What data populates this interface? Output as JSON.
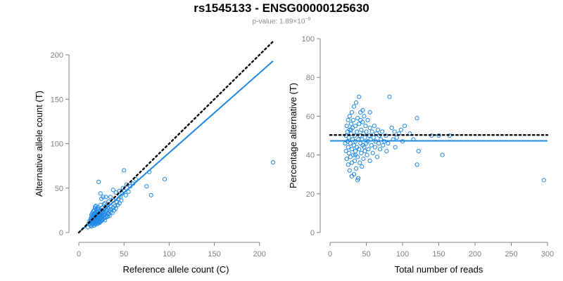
{
  "title": "rs1545133 - ENSG00000125630",
  "subtitle": {
    "prefix": "p-value: 1.89×10",
    "exponent": "−9"
  },
  "colors": {
    "accent": "#1f88e5",
    "axis": "#808080",
    "dotted": "#000000"
  },
  "chart_data": [
    {
      "type": "scatter",
      "xlabel": "Reference allele count (C)",
      "ylabel": "Alternative allele count (T)",
      "xlim": [
        0,
        215
      ],
      "ylim": [
        0,
        200
      ],
      "xticks": [
        0,
        50,
        100,
        150,
        200
      ],
      "yticks": [
        0,
        50,
        100,
        150,
        200
      ],
      "grid": false,
      "lines": [
        {
          "kind": "fit",
          "style": "solid",
          "color": "#1f88e5",
          "x": [
            0,
            215
          ],
          "y": [
            0,
            193
          ]
        },
        {
          "kind": "reference",
          "style": "dotted",
          "color": "#000000",
          "x": [
            0,
            215
          ],
          "y": [
            0,
            215
          ]
        }
      ],
      "points": [
        [
          10,
          6
        ],
        [
          11,
          10
        ],
        [
          12,
          9
        ],
        [
          12,
          13
        ],
        [
          13,
          8
        ],
        [
          13,
          12
        ],
        [
          13,
          15
        ],
        [
          14,
          7
        ],
        [
          14,
          11
        ],
        [
          14,
          14
        ],
        [
          14,
          17
        ],
        [
          14,
          20
        ],
        [
          15,
          9
        ],
        [
          15,
          13
        ],
        [
          15,
          16
        ],
        [
          15,
          19
        ],
        [
          15,
          22
        ],
        [
          16,
          10
        ],
        [
          16,
          12
        ],
        [
          16,
          14
        ],
        [
          16,
          18
        ],
        [
          16,
          24
        ],
        [
          17,
          8
        ],
        [
          17,
          11
        ],
        [
          17,
          15
        ],
        [
          17,
          17
        ],
        [
          17,
          21
        ],
        [
          17,
          25
        ],
        [
          18,
          10
        ],
        [
          18,
          13
        ],
        [
          18,
          16
        ],
        [
          18,
          19
        ],
        [
          18,
          22
        ],
        [
          18,
          27
        ],
        [
          19,
          9
        ],
        [
          19,
          12
        ],
        [
          19,
          15
        ],
        [
          19,
          18
        ],
        [
          19,
          23
        ],
        [
          19,
          30
        ],
        [
          20,
          11
        ],
        [
          20,
          14
        ],
        [
          20,
          17
        ],
        [
          20,
          20
        ],
        [
          20,
          24
        ],
        [
          21,
          10
        ],
        [
          21,
          13
        ],
        [
          21,
          16
        ],
        [
          21,
          19
        ],
        [
          21,
          22
        ],
        [
          21,
          28
        ],
        [
          22,
          12
        ],
        [
          22,
          15
        ],
        [
          22,
          18
        ],
        [
          22,
          21
        ],
        [
          22,
          26
        ],
        [
          23,
          11
        ],
        [
          23,
          14
        ],
        [
          23,
          17
        ],
        [
          23,
          20
        ],
        [
          23,
          24
        ],
        [
          24,
          12
        ],
        [
          24,
          16
        ],
        [
          24,
          19
        ],
        [
          24,
          22
        ],
        [
          24,
          31
        ],
        [
          25,
          13
        ],
        [
          25,
          17
        ],
        [
          25,
          20
        ],
        [
          25,
          25
        ],
        [
          26,
          14
        ],
        [
          26,
          18
        ],
        [
          26,
          22
        ],
        [
          26,
          28
        ],
        [
          27,
          15
        ],
        [
          27,
          19
        ],
        [
          27,
          24
        ],
        [
          28,
          16
        ],
        [
          28,
          20
        ],
        [
          28,
          26
        ],
        [
          29,
          14
        ],
        [
          29,
          21
        ],
        [
          29,
          33
        ],
        [
          30,
          17
        ],
        [
          30,
          23
        ],
        [
          30,
          29
        ],
        [
          31,
          19
        ],
        [
          31,
          25
        ],
        [
          32,
          18
        ],
        [
          32,
          22
        ],
        [
          32,
          28
        ],
        [
          33,
          21
        ],
        [
          33,
          35
        ],
        [
          34,
          19
        ],
        [
          34,
          25
        ],
        [
          35,
          23
        ],
        [
          35,
          30
        ],
        [
          36,
          26
        ],
        [
          37,
          22
        ],
        [
          38,
          28
        ],
        [
          38,
          36
        ],
        [
          39,
          25
        ],
        [
          40,
          30
        ],
        [
          41,
          27
        ],
        [
          42,
          34
        ],
        [
          43,
          31
        ],
        [
          44,
          38
        ],
        [
          45,
          33
        ],
        [
          46,
          40
        ],
        [
          47,
          36
        ],
        [
          48,
          44
        ],
        [
          49,
          50
        ],
        [
          50,
          47
        ],
        [
          52,
          42
        ],
        [
          53,
          54
        ],
        [
          55,
          46
        ],
        [
          57,
          52
        ],
        [
          60,
          55
        ],
        [
          63,
          60
        ],
        [
          22,
          57
        ],
        [
          50,
          70
        ],
        [
          38,
          48
        ],
        [
          41,
          45
        ],
        [
          45,
          47
        ],
        [
          30,
          40
        ],
        [
          25,
          38
        ],
        [
          35,
          40
        ],
        [
          28,
          32
        ],
        [
          20,
          26
        ],
        [
          18,
          29
        ],
        [
          24,
          44
        ],
        [
          27,
          40
        ],
        [
          80,
          42
        ],
        [
          75,
          52
        ],
        [
          78,
          68
        ],
        [
          95,
          60
        ],
        [
          215,
          79
        ]
      ]
    },
    {
      "type": "scatter",
      "xlabel": "Total number of reads",
      "ylabel": "Percentage alternative (T)",
      "xlim": [
        0,
        300
      ],
      "ylim": [
        0,
        100
      ],
      "xticks": [
        0,
        50,
        100,
        150,
        200,
        250,
        300
      ],
      "yticks": [
        0,
        20,
        40,
        60,
        80,
        100
      ],
      "grid": false,
      "lines": [
        {
          "kind": "fit",
          "style": "solid",
          "color": "#1f88e5",
          "x": [
            0,
            300
          ],
          "y": [
            47.3,
            47.3
          ]
        },
        {
          "kind": "reference",
          "style": "dotted",
          "color": "#000000",
          "x": [
            0,
            300
          ],
          "y": [
            50.3,
            50.3
          ]
        }
      ],
      "points": [
        [
          21,
          46
        ],
        [
          22,
          50
        ],
        [
          22,
          42
        ],
        [
          23,
          55
        ],
        [
          23,
          38
        ],
        [
          24,
          47
        ],
        [
          24,
          52
        ],
        [
          25,
          44
        ],
        [
          25,
          58
        ],
        [
          25,
          35
        ],
        [
          26,
          49
        ],
        [
          26,
          41
        ],
        [
          27,
          53
        ],
        [
          27,
          60
        ],
        [
          27,
          32
        ],
        [
          28,
          46
        ],
        [
          28,
          39
        ],
        [
          29,
          56
        ],
        [
          29,
          51
        ],
        [
          30,
          43
        ],
        [
          30,
          62
        ],
        [
          30,
          36
        ],
        [
          31,
          48
        ],
        [
          31,
          54
        ],
        [
          32,
          40
        ],
        [
          32,
          58
        ],
        [
          33,
          45
        ],
        [
          33,
          30
        ],
        [
          33,
          65
        ],
        [
          34,
          50
        ],
        [
          34,
          37
        ],
        [
          35,
          47
        ],
        [
          35,
          55
        ],
        [
          35,
          42
        ],
        [
          36,
          67
        ],
        [
          36,
          33
        ],
        [
          37,
          52
        ],
        [
          37,
          44
        ],
        [
          38,
          59
        ],
        [
          38,
          39
        ],
        [
          39,
          48
        ],
        [
          39,
          28
        ],
        [
          40,
          56
        ],
        [
          40,
          43
        ],
        [
          40,
          70
        ],
        [
          41,
          50
        ],
        [
          41,
          36
        ],
        [
          42,
          46
        ],
        [
          42,
          62
        ],
        [
          43,
          53
        ],
        [
          43,
          41
        ],
        [
          44,
          48
        ],
        [
          44,
          34
        ],
        [
          45,
          57
        ],
        [
          45,
          45
        ],
        [
          46,
          51
        ],
        [
          46,
          38
        ],
        [
          47,
          60
        ],
        [
          47,
          44
        ],
        [
          48,
          49
        ],
        [
          48,
          42
        ],
        [
          49,
          55
        ],
        [
          50,
          46
        ],
        [
          50,
          52
        ],
        [
          51,
          40
        ],
        [
          52,
          58
        ],
        [
          52,
          47
        ],
        [
          53,
          43
        ],
        [
          54,
          50
        ],
        [
          55,
          37
        ],
        [
          55,
          54
        ],
        [
          56,
          48
        ],
        [
          57,
          45
        ],
        [
          58,
          52
        ],
        [
          59,
          41
        ],
        [
          60,
          49
        ],
        [
          61,
          55
        ],
        [
          62,
          44
        ],
        [
          63,
          47
        ],
        [
          64,
          51
        ],
        [
          65,
          39
        ],
        [
          66,
          53
        ],
        [
          67,
          46
        ],
        [
          68,
          50
        ],
        [
          69,
          43
        ],
        [
          70,
          48
        ],
        [
          72,
          52
        ],
        [
          73,
          45
        ],
        [
          75,
          47
        ],
        [
          77,
          50
        ],
        [
          78,
          42
        ],
        [
          80,
          46
        ],
        [
          82,
          70
        ],
        [
          85,
          54
        ],
        [
          87,
          48
        ],
        [
          89,
          52
        ],
        [
          90,
          44
        ],
        [
          92,
          49
        ],
        [
          95,
          51
        ],
        [
          98,
          53
        ],
        [
          100,
          47
        ],
        [
          103,
          55
        ],
        [
          110,
          51
        ],
        [
          115,
          48
        ],
        [
          120,
          59
        ],
        [
          120,
          35
        ],
        [
          122,
          42
        ],
        [
          140,
          50
        ],
        [
          150,
          50
        ],
        [
          155,
          40
        ],
        [
          165,
          50
        ],
        [
          30,
          29
        ],
        [
          38,
          27
        ],
        [
          45,
          63
        ],
        [
          35,
          40
        ],
        [
          29,
          53
        ],
        [
          42,
          58
        ],
        [
          55,
          62
        ],
        [
          295,
          27
        ]
      ]
    }
  ]
}
